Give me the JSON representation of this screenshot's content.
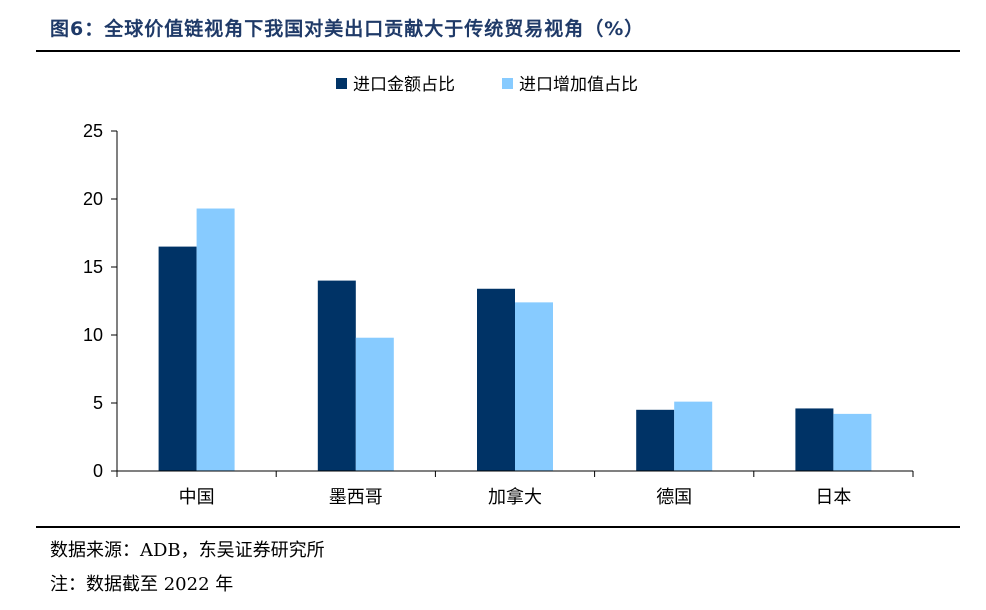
{
  "figure_title": "图6：全球价值链视角下我国对美出口贡献大于传统贸易视角（%）",
  "source_note": "数据来源：ADB，东吴证券研究所",
  "extra_note": "注：数据截至 2022 年",
  "colors": {
    "title": "#1f3a68",
    "series1": "#003366",
    "series2": "#87cbff",
    "axis": "#000000"
  },
  "chart_data": {
    "type": "bar",
    "title": "",
    "xlabel": "",
    "ylabel": "",
    "categories": [
      "中国",
      "墨西哥",
      "加拿大",
      "德国",
      "日本"
    ],
    "series": [
      {
        "name": "进口金额占比",
        "values": [
          16.5,
          14.0,
          13.4,
          4.5,
          4.6
        ]
      },
      {
        "name": "进口增加值占比",
        "values": [
          19.3,
          9.8,
          12.4,
          5.1,
          4.2
        ]
      }
    ],
    "ylim": [
      0,
      25
    ],
    "yticks": [
      0,
      5,
      10,
      15,
      20,
      25
    ],
    "grid": false,
    "legend_position": "top-center"
  }
}
